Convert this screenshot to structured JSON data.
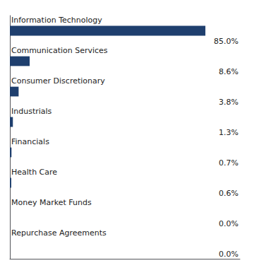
{
  "chart_data": {
    "type": "bar",
    "orientation": "horizontal",
    "categories": [
      "Information Technology",
      "Communication Services",
      "Consumer Discretionary",
      "Industrials",
      "Financials",
      "Health Care",
      "Money Market Funds",
      "Repurchase Agreements"
    ],
    "values": [
      85.0,
      8.6,
      3.8,
      1.3,
      0.7,
      0.6,
      0.0,
      0.0
    ],
    "value_labels": [
      "85.0%",
      "8.6%",
      "3.8%",
      "1.3%",
      "0.7%",
      "0.6%",
      "0.0%",
      "0.0%"
    ],
    "data_labels": true,
    "color": "#1f3f6e",
    "xlim": [
      0,
      100
    ],
    "tick_labels": false,
    "grid": false
  }
}
